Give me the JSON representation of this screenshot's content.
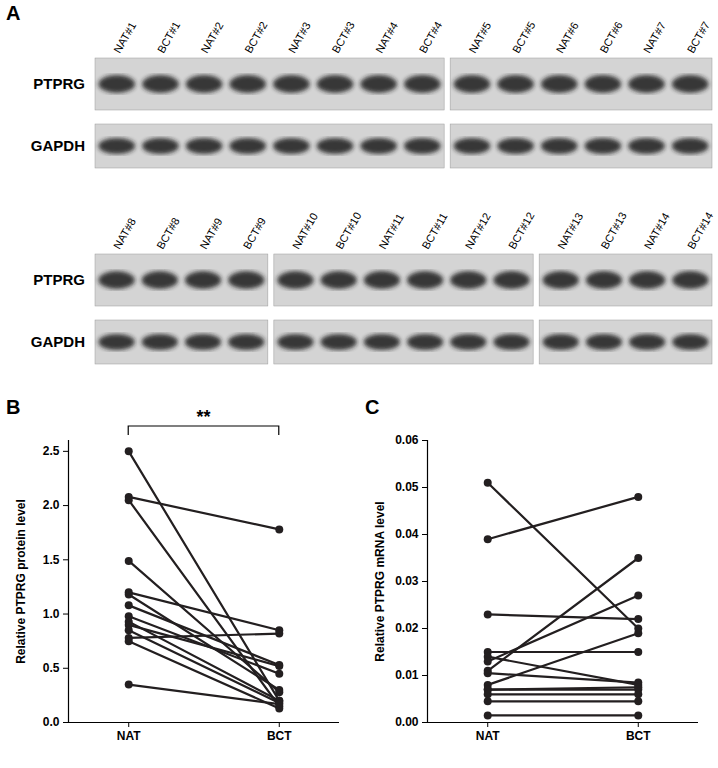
{
  "blot": {
    "panel": "A",
    "bands": [
      "PTPRG",
      "GAPDH"
    ],
    "rows": [
      {
        "groups": [
          [
            "NAT#1",
            "BCT#1",
            "NAT#2",
            "BCT#2",
            "NAT#3",
            "BCT#3",
            "NAT#4",
            "BCT#4"
          ],
          [
            "NAT#5",
            "BCT#5",
            "NAT#6",
            "BCT#6",
            "NAT#7",
            "BCT#7"
          ]
        ]
      },
      {
        "groups": [
          [
            "NAT#8",
            "BCT#8",
            "NAT#9",
            "BCT#9"
          ],
          [
            "NAT#10",
            "BCT#10",
            "NAT#11",
            "BCT#11",
            "NAT#12",
            "BCT#12"
          ],
          [
            "NAT#13",
            "BCT#13",
            "NAT#14",
            "BCT#14"
          ]
        ]
      }
    ]
  },
  "chart_data": [
    {
      "panel": "B",
      "type": "line",
      "annotation": "**",
      "marker": "circle",
      "color": "#231f20",
      "categories": [
        "NAT",
        "BCT"
      ],
      "ylabel": "Relative PTPRG protein level",
      "ylim": [
        0,
        2.6
      ],
      "yticks": [
        {
          "value": 0,
          "label": "0.0"
        },
        {
          "value": 0.5,
          "label": "0.5"
        },
        {
          "value": 1,
          "label": "1.0"
        },
        {
          "value": 1.5,
          "label": "1.5"
        },
        {
          "value": 2,
          "label": "2.0"
        },
        {
          "value": 2.5,
          "label": "2.5"
        }
      ],
      "series": [
        {
          "values": [
            2.5,
            0.2
          ]
        },
        {
          "values": [
            2.08,
            1.78
          ]
        },
        {
          "values": [
            2.05,
            0.15
          ]
        },
        {
          "values": [
            1.49,
            0.28
          ]
        },
        {
          "values": [
            1.2,
            0.85
          ]
        },
        {
          "values": [
            1.18,
            0.3
          ]
        },
        {
          "values": [
            1.08,
            0.53
          ]
        },
        {
          "values": [
            0.98,
            0.45
          ]
        },
        {
          "values": [
            0.93,
            0.2
          ]
        },
        {
          "values": [
            0.9,
            0.52
          ]
        },
        {
          "values": [
            0.85,
            0.18
          ]
        },
        {
          "values": [
            0.78,
            0.82
          ]
        },
        {
          "values": [
            0.75,
            0.13
          ]
        },
        {
          "values": [
            0.35,
            0.17
          ]
        }
      ]
    },
    {
      "panel": "C",
      "type": "line",
      "marker": "circle",
      "color": "#231f20",
      "categories": [
        "NAT",
        "BCT"
      ],
      "ylabel": "Relative PTPRG mRNA level",
      "ylim": [
        0,
        0.06
      ],
      "yticks": [
        {
          "value": 0,
          "label": "0.00"
        },
        {
          "value": 0.01,
          "label": "0.01"
        },
        {
          "value": 0.02,
          "label": "0.02"
        },
        {
          "value": 0.03,
          "label": "0.03"
        },
        {
          "value": 0.04,
          "label": "0.04"
        },
        {
          "value": 0.05,
          "label": "0.05"
        },
        {
          "value": 0.06,
          "label": "0.06"
        }
      ],
      "series": [
        {
          "values": [
            0.051,
            0.02
          ]
        },
        {
          "values": [
            0.039,
            0.048
          ]
        },
        {
          "values": [
            0.023,
            0.022
          ]
        },
        {
          "values": [
            0.015,
            0.015
          ]
        },
        {
          "values": [
            0.014,
            0.008
          ]
        },
        {
          "values": [
            0.013,
            0.027
          ]
        },
        {
          "values": [
            0.011,
            0.035
          ]
        },
        {
          "values": [
            0.0105,
            0.0085
          ]
        },
        {
          "values": [
            0.008,
            0.019
          ]
        },
        {
          "values": [
            0.007,
            0.007
          ]
        },
        {
          "values": [
            0.007,
            0.0075
          ]
        },
        {
          "values": [
            0.006,
            0.006
          ]
        },
        {
          "values": [
            0.0045,
            0.0045
          ]
        },
        {
          "values": [
            0.0015,
            0.0015
          ]
        }
      ]
    }
  ]
}
